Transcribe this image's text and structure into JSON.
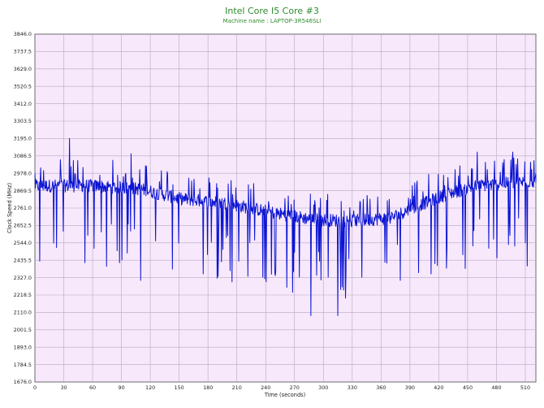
{
  "chart_data": {
    "type": "line",
    "title": "Intel Core I5 Core #3",
    "subtitle": "Machine name : LAPTOP-3R546SLI",
    "xlabel": "Time (seconds)",
    "ylabel": "Clock Speed (MHz)",
    "xlim": [
      0,
      521
    ],
    "ylim": [
      1676.0,
      3846.0
    ],
    "x_ticks": [
      0,
      30,
      60,
      90,
      120,
      150,
      180,
      210,
      240,
      270,
      300,
      330,
      360,
      390,
      420,
      450,
      480,
      510
    ],
    "y_ticks": [
      "1676.0",
      "1784.5",
      "1893.0",
      "2001.5",
      "2110.0",
      "2218.5",
      "2327.0",
      "2435.5",
      "2544.0",
      "2652.5",
      "2761.0",
      "2869.5",
      "2978.0",
      "3086.5",
      "3195.0",
      "3303.5",
      "3412.0",
      "3520.5",
      "3629.0",
      "3737.5",
      "3846.0"
    ],
    "grid": true,
    "colors": {
      "background": "#f7e8fb",
      "grid": "#b9a8c4",
      "line": "#0a14d2",
      "title": "#2e8b2e"
    },
    "series": [
      {
        "name": "",
        "baseline": [
          [
            0,
            2900
          ],
          [
            60,
            2900
          ],
          [
            110,
            2880
          ],
          [
            150,
            2820
          ],
          [
            200,
            2790
          ],
          [
            250,
            2730
          ],
          [
            290,
            2690
          ],
          [
            330,
            2680
          ],
          [
            370,
            2700
          ],
          [
            400,
            2780
          ],
          [
            430,
            2850
          ],
          [
            460,
            2900
          ],
          [
            521,
            2930
          ]
        ],
        "notable_points": [
          [
            0,
            2978
          ],
          [
            5,
            2430
          ],
          [
            36,
            3195
          ],
          [
            52,
            2420
          ],
          [
            88,
            2420
          ],
          [
            100,
            3100
          ],
          [
            110,
            2310
          ],
          [
            143,
            2380
          ],
          [
            175,
            2350
          ],
          [
            205,
            2300
          ],
          [
            212,
            2430
          ],
          [
            237,
            2330
          ],
          [
            250,
            2340
          ],
          [
            275,
            2330
          ],
          [
            287,
            2090
          ],
          [
            296,
            2430
          ],
          [
            305,
            2330
          ],
          [
            315,
            2090
          ],
          [
            340,
            2330
          ],
          [
            380,
            2310
          ],
          [
            412,
            2350
          ],
          [
            445,
            2470
          ],
          [
            460,
            3110
          ],
          [
            472,
            2510
          ],
          [
            497,
            3110
          ],
          [
            512,
            2400
          ],
          [
            521,
            2978
          ]
        ]
      }
    ]
  }
}
